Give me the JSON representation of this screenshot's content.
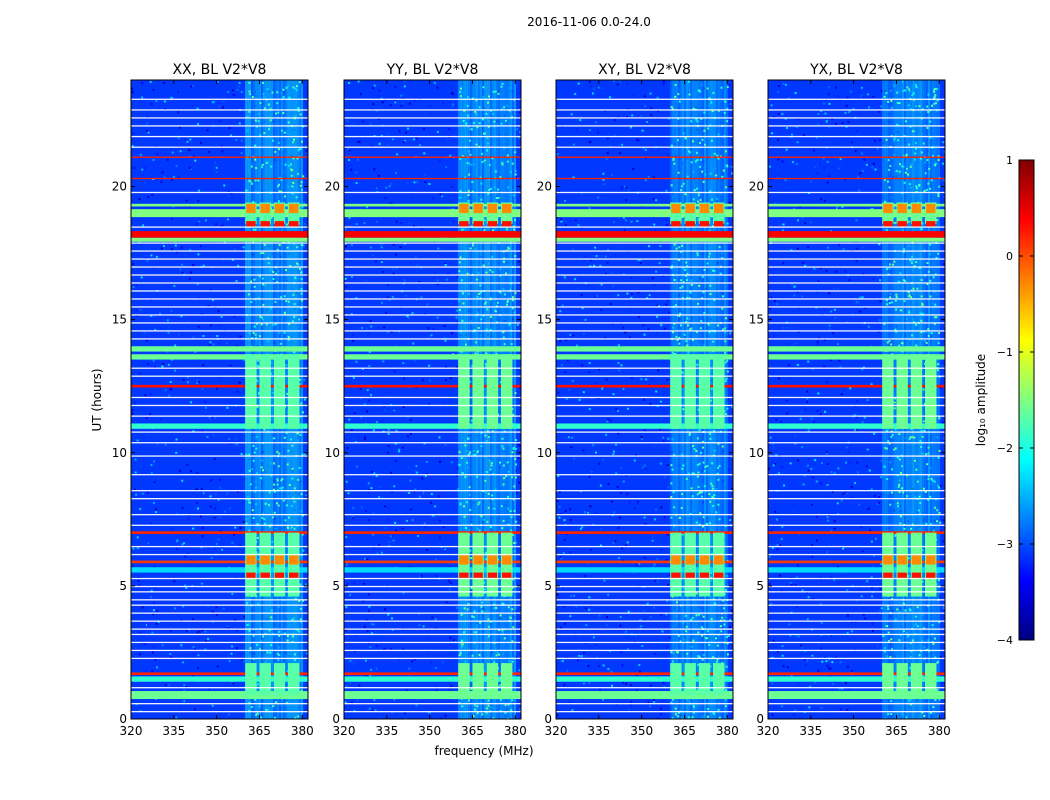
{
  "chart_data": {
    "type": "heatmap",
    "suptitle": "2016-11-06 0.0-24.0",
    "panels": [
      {
        "title": "XX, BL V2*V8",
        "variant": 0
      },
      {
        "title": "YY, BL V2*V8",
        "variant": 1
      },
      {
        "title": "XY, BL V2*V8",
        "variant": 2
      },
      {
        "title": "YX, BL V2*V8",
        "variant": 3
      }
    ],
    "xlabel": "frequency (MHz)",
    "ylabel": "UT (hours)",
    "xlim": [
      320,
      382
    ],
    "ylim": [
      0,
      24
    ],
    "xticks": [
      320,
      335,
      350,
      365,
      380
    ],
    "yticks": [
      0,
      5,
      10,
      15,
      20
    ],
    "colorbar": {
      "label": "log₁₀ amplitude",
      "vmin": -4,
      "vmax": 1,
      "ticks": [
        1,
        0,
        -1,
        -2,
        -3,
        -4
      ],
      "tick_labels": [
        "1",
        "0",
        "−1",
        "−2",
        "−3",
        "−4"
      ],
      "colormap": [
        "#000080",
        "#0000ff",
        "#0080ff",
        "#00ffff",
        "#80ff80",
        "#ffff00",
        "#ff8000",
        "#ff0000",
        "#800000"
      ]
    },
    "background_level": -3.1,
    "rfi_band_mhz": [
      360,
      380
    ],
    "blocks_mhz": [
      [
        360,
        364
      ],
      [
        365,
        369
      ],
      [
        370,
        374
      ],
      [
        375,
        379
      ]
    ],
    "rfi_segments_ut": [
      [
        0.9,
        2.1
      ],
      [
        4.6,
        7.0
      ],
      [
        10.9,
        13.7
      ],
      [
        18.6,
        19.4
      ]
    ],
    "block_levels": {
      "low": -1.7,
      "high": -0.3
    },
    "bright_rows_ut": [
      {
        "ut": 0.9,
        "width": 0.3,
        "level": -1.6
      },
      {
        "ut": 1.5,
        "width": 0.2,
        "level": -1.9
      },
      {
        "ut": 1.7,
        "width": 0.1,
        "level": 0.2
      },
      {
        "ut": 5.6,
        "width": 0.2,
        "level": -2.3
      },
      {
        "ut": 5.9,
        "width": 0.1,
        "level": 0.1
      },
      {
        "ut": 7.0,
        "width": 0.1,
        "level": 0.2
      },
      {
        "ut": 11.0,
        "width": 0.2,
        "level": -1.9
      },
      {
        "ut": 12.5,
        "width": 0.1,
        "level": 0.3
      },
      {
        "ut": 13.6,
        "width": 0.2,
        "level": -1.6
      },
      {
        "ut": 13.9,
        "width": 0.2,
        "level": -1.6
      },
      {
        "ut": 18.2,
        "width": 0.25,
        "level": 0.4
      },
      {
        "ut": 18.0,
        "width": 0.15,
        "level": -1.5
      },
      {
        "ut": 19.0,
        "width": 0.3,
        "level": -1.5
      },
      {
        "ut": 19.3,
        "width": 0.1,
        "level": -1.5
      },
      {
        "ut": 20.3,
        "width": 0.05,
        "level": 0.2
      },
      {
        "ut": 21.1,
        "width": 0.05,
        "level": 0.2
      }
    ],
    "white_rows_ut": [
      0.3,
      0.6,
      1.2,
      2.3,
      2.6,
      2.9,
      3.2,
      3.4,
      3.7,
      4.0,
      4.3,
      4.5,
      4.8,
      5.0,
      5.3,
      6.2,
      6.5,
      7.3,
      7.7,
      8.3,
      8.6,
      9.2,
      9.9,
      10.4,
      10.8,
      11.4,
      11.8,
      12.1,
      12.9,
      13.2,
      14.3,
      14.6,
      14.9,
      15.2,
      15.5,
      15.8,
      16.1,
      16.4,
      16.7,
      17.0,
      17.3,
      17.6,
      17.9,
      18.5,
      19.8,
      21.5,
      21.9,
      22.3,
      22.6,
      22.9,
      23.3
    ]
  }
}
